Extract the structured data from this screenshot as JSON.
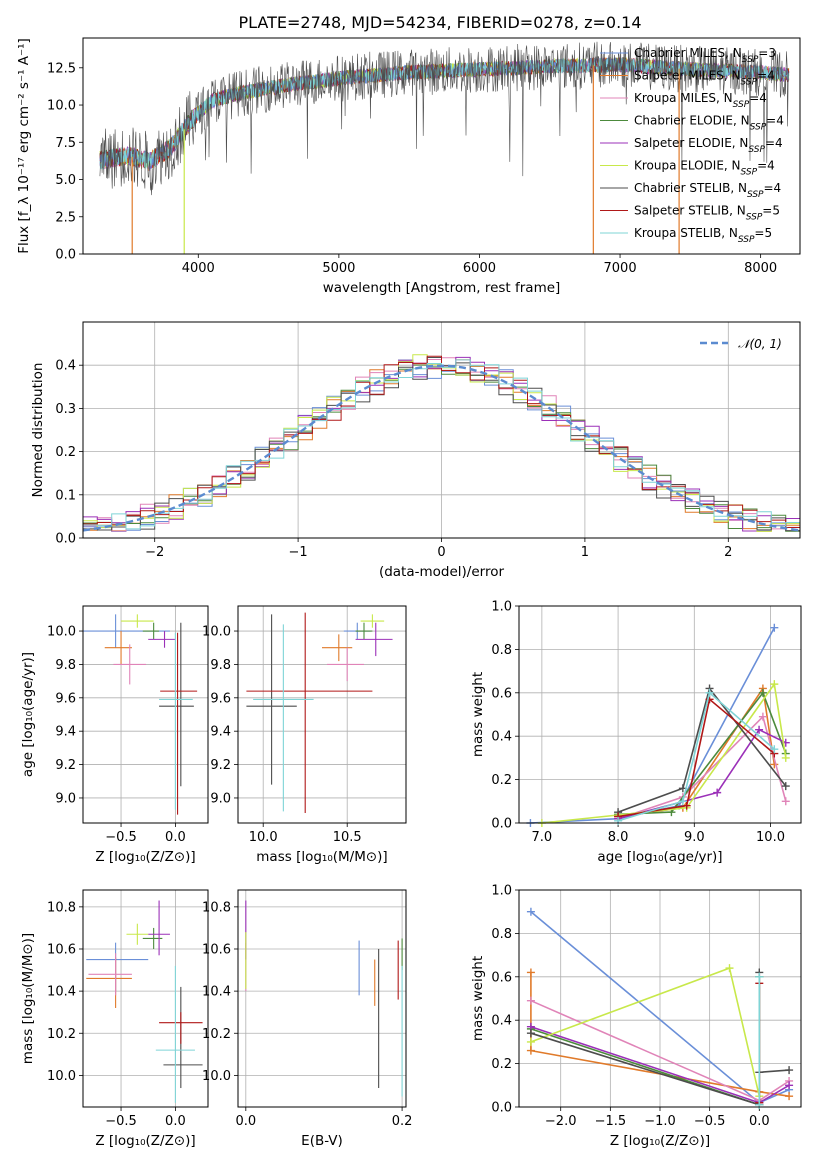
{
  "colors": [
    "#6a8fd8",
    "#e07a2a",
    "#e084b8",
    "#4c8a3c",
    "#9b30b8",
    "#c8e84a",
    "#4d4d4d",
    "#b01818",
    "#7fd4d6"
  ],
  "legend_labels": [
    "Chabrier MILES, N$_{SSP}$=3",
    "Salpeter MILES, N$_{SSP}$=4",
    "Kroupa MILES, N$_{SSP}$=4",
    "Chabrier ELODIE, N$_{SSP}$=4",
    "Salpeter ELODIE, N$_{SSP}$=4",
    "Kroupa ELODIE, N$_{SSP}$=4",
    "Chabrier STELIB, N$_{SSP}$=4",
    "Salpeter STELIB, N$_{SSP}$=5",
    "Kroupa STELIB, N$_{SSP}$=5"
  ],
  "gaussian_label": "𝒩(0, 1)",
  "chart_data": [
    {
      "id": "spectrum",
      "type": "line",
      "title": "PLATE=2748, MJD=54234, FIBERID=0278, z=0.14",
      "xlabel": "wavelength [Angstrom, rest frame]",
      "ylabel": "Flux [f_λ 10⁻¹⁷ erg cm⁻² s⁻¹ A⁻¹]",
      "xlim": [
        3180,
        8280
      ],
      "ylim": [
        0,
        14.5
      ],
      "xticks": [
        4000,
        5000,
        6000,
        7000,
        8000
      ],
      "yticks": [
        0.0,
        2.5,
        5.0,
        7.5,
        10.0,
        12.5
      ],
      "continuum": [
        [
          3300,
          6.3
        ],
        [
          3500,
          6.6
        ],
        [
          3650,
          6.2
        ],
        [
          3800,
          7.1
        ],
        [
          3950,
          9.0
        ],
        [
          4100,
          10.3
        ],
        [
          4300,
          10.8
        ],
        [
          4600,
          11.3
        ],
        [
          5000,
          11.8
        ],
        [
          5500,
          12.2
        ],
        [
          6000,
          12.4
        ],
        [
          6500,
          12.6
        ],
        [
          7000,
          12.7
        ],
        [
          7500,
          12.4
        ],
        [
          8000,
          12.2
        ],
        [
          8200,
          12.0
        ]
      ],
      "dropouts": [
        {
          "x": 3530,
          "y": 0
        },
        {
          "x": 3900,
          "y": 0
        },
        {
          "x": 6810,
          "y": 0
        },
        {
          "x": 7420,
          "y": 0
        }
      ],
      "legend": "top-right",
      "grid": false
    },
    {
      "id": "residuals",
      "type": "histogram",
      "xlabel": "(data-model)/error",
      "ylabel": "Normed distribution",
      "xlim": [
        -2.5,
        2.5
      ],
      "ylim": [
        0,
        0.5
      ],
      "xticks": [
        -2,
        -1,
        0,
        1,
        2
      ],
      "yticks": [
        0.0,
        0.1,
        0.2,
        0.3,
        0.4
      ],
      "bin_width": 0.1,
      "gaussian": {
        "mu": 0,
        "sigma": 1
      },
      "legend": "top-right",
      "grid": true
    },
    {
      "id": "age-vs-Z",
      "type": "scatter",
      "xlabel": "Z [log10(Z/Z⊙)]",
      "ylabel": "age  [log10(age/yr)]",
      "xlim": [
        -0.85,
        0.3
      ],
      "ylim": [
        8.85,
        10.15
      ],
      "xticks": [
        -0.5,
        0.0
      ],
      "xticklabels": [
        "−0.5",
        "0.0"
      ],
      "yticks": [
        9.0,
        9.2,
        9.4,
        9.6,
        9.8,
        10.0
      ],
      "points": [
        {
          "x": -0.55,
          "y": 10.0,
          "xerr": [
            0.35,
            0.5
          ],
          "yerr": [
            0.1,
            0.1
          ]
        },
        {
          "x": -0.5,
          "y": 9.9,
          "xerr": [
            0.15,
            0.1
          ],
          "yerr": [
            0.1,
            0.1
          ]
        },
        {
          "x": -0.42,
          "y": 9.8,
          "xerr": [
            0.15,
            0.15
          ],
          "yerr": [
            0.12,
            0.12
          ]
        },
        {
          "x": -0.2,
          "y": 10.0,
          "xerr": [
            0.1,
            0.05
          ],
          "yerr": [
            0.05,
            0.05
          ]
        },
        {
          "x": -0.1,
          "y": 9.95,
          "xerr": [
            0.15,
            0.1
          ],
          "yerr": [
            0.05,
            0.05
          ]
        },
        {
          "x": -0.35,
          "y": 10.06,
          "xerr": [
            0.15,
            0.15
          ],
          "yerr": [
            0.04,
            0.04
          ]
        },
        {
          "x": 0.05,
          "y": 9.55,
          "xerr": [
            0.2,
            0.12
          ],
          "yerr": [
            0.48,
            0.5
          ]
        },
        {
          "x": 0.02,
          "y": 9.64,
          "xerr": [
            0.16,
            0.18
          ],
          "yerr": [
            0.74,
            0.35
          ]
        },
        {
          "x": 0.0,
          "y": 9.59,
          "xerr": [
            0.15,
            0.16
          ],
          "yerr": [
            0.66,
            0.4
          ]
        }
      ]
    },
    {
      "id": "age-vs-mass",
      "type": "scatter",
      "xlabel": "mass [log10(M/M⊙)]",
      "ylabel": "",
      "xlim": [
        9.85,
        10.85
      ],
      "ylim": [
        8.85,
        10.15
      ],
      "xticks": [
        10.0,
        10.5
      ],
      "xticklabels": [
        "10.0",
        "10.5"
      ],
      "yticks": [
        9.0,
        9.2,
        9.4,
        9.6,
        9.8,
        10.0
      ],
      "points": [
        {
          "x": 10.56,
          "y": 10.0,
          "xerr": [
            0.08,
            0.08
          ],
          "yerr": [
            0.05,
            0.05
          ]
        },
        {
          "x": 10.45,
          "y": 9.9,
          "xerr": [
            0.1,
            0.08
          ],
          "yerr": [
            0.08,
            0.08
          ]
        },
        {
          "x": 10.5,
          "y": 9.8,
          "xerr": [
            0.12,
            0.1
          ],
          "yerr": [
            0.1,
            0.1
          ]
        },
        {
          "x": 10.6,
          "y": 10.0,
          "xerr": [
            0.05,
            0.05
          ],
          "yerr": [
            0.05,
            0.05
          ]
        },
        {
          "x": 10.67,
          "y": 9.95,
          "xerr": [
            0.12,
            0.1
          ],
          "yerr": [
            0.1,
            0.1
          ]
        },
        {
          "x": 10.65,
          "y": 10.06,
          "xerr": [
            0.07,
            0.07
          ],
          "yerr": [
            0.04,
            0.04
          ]
        },
        {
          "x": 10.05,
          "y": 9.55,
          "xerr": [
            0.15,
            0.15
          ],
          "yerr": [
            0.47,
            0.55
          ]
        },
        {
          "x": 10.25,
          "y": 9.64,
          "xerr": [
            0.35,
            0.4
          ],
          "yerr": [
            0.73,
            0.47
          ]
        },
        {
          "x": 10.12,
          "y": 9.59,
          "xerr": [
            0.18,
            0.18
          ],
          "yerr": [
            0.67,
            0.45
          ]
        }
      ]
    },
    {
      "id": "weight-vs-age",
      "type": "line",
      "xlabel": "age  [log10(age/yr)]",
      "ylabel": "mass weight",
      "xlim": [
        6.7,
        10.4
      ],
      "ylim": [
        0,
        1.0
      ],
      "xticks": [
        7,
        8,
        9,
        10
      ],
      "yticks": [
        0.0,
        0.2,
        0.4,
        0.6,
        0.8,
        1.0
      ],
      "series": [
        {
          "points": [
            [
              6.85,
              0.0
            ],
            [
              8.0,
              0.02
            ],
            [
              8.8,
              0.08
            ],
            [
              10.05,
              0.9
            ]
          ]
        },
        {
          "points": [
            [
              8.0,
              0.03
            ],
            [
              8.85,
              0.07
            ],
            [
              9.9,
              0.62
            ],
            [
              10.05,
              0.27
            ]
          ]
        },
        {
          "points": [
            [
              8.0,
              0.02
            ],
            [
              8.85,
              0.12
            ],
            [
              9.9,
              0.49
            ],
            [
              10.2,
              0.1
            ]
          ]
        },
        {
          "points": [
            [
              8.0,
              0.04
            ],
            [
              8.7,
              0.05
            ],
            [
              9.9,
              0.6
            ],
            [
              10.2,
              0.32
            ]
          ]
        },
        {
          "points": [
            [
              8.0,
              0.02
            ],
            [
              9.3,
              0.14
            ],
            [
              9.85,
              0.43
            ],
            [
              10.2,
              0.37
            ]
          ]
        },
        {
          "points": [
            [
              7.0,
              0.0
            ],
            [
              8.9,
              0.07
            ],
            [
              10.05,
              0.64
            ],
            [
              10.2,
              0.3
            ]
          ]
        },
        {
          "points": [
            [
              8.0,
              0.05
            ],
            [
              8.85,
              0.16
            ],
            [
              9.2,
              0.62
            ],
            [
              10.2,
              0.17
            ]
          ]
        },
        {
          "points": [
            [
              8.0,
              0.03
            ],
            [
              8.9,
              0.08
            ],
            [
              9.2,
              0.57
            ],
            [
              10.05,
              0.32
            ]
          ]
        },
        {
          "points": [
            [
              8.0,
              0.01
            ],
            [
              8.85,
              0.1
            ],
            [
              9.2,
              0.6
            ],
            [
              10.05,
              0.34
            ]
          ]
        }
      ]
    },
    {
      "id": "mass-vs-Z",
      "type": "scatter",
      "xlabel": "Z [log10(Z/Z⊙)]",
      "ylabel": "mass [log10(M/M⊙)]",
      "xlim": [
        -0.85,
        0.3
      ],
      "ylim": [
        9.85,
        10.88
      ],
      "xticks": [
        -0.5,
        0.0
      ],
      "xticklabels": [
        "−0.5",
        "0.0"
      ],
      "yticks": [
        10.0,
        10.2,
        10.4,
        10.6,
        10.8
      ],
      "points": [
        {
          "x": -0.55,
          "y": 10.55,
          "xerr": [
            0.27,
            0.3
          ],
          "yerr": [
            0.15,
            0.08
          ]
        },
        {
          "x": -0.55,
          "y": 10.46,
          "xerr": [
            0.27,
            0.15
          ],
          "yerr": [
            0.14,
            0.1
          ]
        },
        {
          "x": -0.55,
          "y": 10.48,
          "xerr": [
            0.25,
            0.15
          ],
          "yerr": [
            0.1,
            0.1
          ]
        },
        {
          "x": -0.2,
          "y": 10.65,
          "xerr": [
            0.1,
            0.08
          ],
          "yerr": [
            0.05,
            0.05
          ]
        },
        {
          "x": -0.15,
          "y": 10.67,
          "xerr": [
            0.1,
            0.1
          ],
          "yerr": [
            0.1,
            0.16
          ]
        },
        {
          "x": -0.35,
          "y": 10.67,
          "xerr": [
            0.1,
            0.1
          ],
          "yerr": [
            0.05,
            0.05
          ]
        },
        {
          "x": 0.05,
          "y": 10.05,
          "xerr": [
            0.16,
            0.2
          ],
          "yerr": [
            0.11,
            0.37
          ]
        },
        {
          "x": 0.05,
          "y": 10.25,
          "xerr": [
            0.2,
            0.2
          ],
          "yerr": [
            0.1,
            0.05
          ]
        },
        {
          "x": 0.0,
          "y": 10.12,
          "xerr": [
            0.18,
            0.18
          ],
          "yerr": [
            0.25,
            0.4
          ]
        }
      ]
    },
    {
      "id": "mass-vs-ebv",
      "type": "scatter",
      "xlabel": "E(B-V)",
      "ylabel": "",
      "xlim": [
        -0.01,
        0.205
      ],
      "ylim": [
        9.85,
        10.88
      ],
      "xticks": [
        0.0,
        0.2
      ],
      "xticklabels": [
        "0.0",
        "0.2"
      ],
      "yticks": [
        10.0,
        10.2,
        10.4,
        10.6,
        10.8
      ],
      "points": [
        {
          "x": 0.145,
          "y": 10.5,
          "yerr": [
            0.12,
            0.14
          ]
        },
        {
          "x": 0.165,
          "y": 10.45,
          "yerr": [
            0.12,
            0.1
          ]
        },
        {
          "x": 0.0,
          "y": 10.55,
          "yerr": [
            0.15,
            0.08
          ]
        },
        {
          "x": 0.2,
          "y": 10.6,
          "yerr": [
            0.1,
            0.05
          ]
        },
        {
          "x": 0.0,
          "y": 10.7,
          "yerr": [
            0.15,
            0.13
          ]
        },
        {
          "x": 0.0,
          "y": 10.55,
          "yerr": [
            0.14,
            0.13
          ]
        },
        {
          "x": 0.17,
          "y": 10.28,
          "yerr": [
            0.34,
            0.32
          ]
        },
        {
          "x": 0.195,
          "y": 10.5,
          "yerr": [
            0.14,
            0.14
          ]
        },
        {
          "x": 0.2,
          "y": 10.2,
          "yerr": [
            0.3,
            0.32
          ]
        }
      ]
    },
    {
      "id": "weight-vs-Z",
      "type": "line",
      "xlabel": "Z [log10(Z/Z⊙)]",
      "ylabel": "mass weight",
      "xlim": [
        -2.42,
        0.42
      ],
      "ylim": [
        0,
        1.0
      ],
      "xticks": [
        -2.0,
        -1.5,
        -1.0,
        -0.5,
        0.0
      ],
      "xticklabels": [
        "−2.0",
        "−1.5",
        "−1.0",
        "−0.5",
        "0.0"
      ],
      "yticks": [
        0.0,
        0.2,
        0.4,
        0.6,
        0.8,
        1.0
      ],
      "series": [
        {
          "points": [
            [
              -2.3,
              0.9
            ],
            [
              0.0,
              0.02
            ],
            [
              0.3,
              0.08
            ]
          ]
        },
        {
          "points": [
            [
              -2.3,
              0.62
            ],
            [
              -2.3,
              0.26
            ],
            [
              0.0,
              0.07
            ],
            [
              0.3,
              0.05
            ]
          ]
        },
        {
          "points": [
            [
              -2.3,
              0.49
            ],
            [
              0.0,
              0.03
            ],
            [
              0.3,
              0.12
            ]
          ]
        },
        {
          "points": [
            [
              -2.3,
              0.36
            ],
            [
              0.0,
              0.01
            ],
            [
              0.0,
              0.6
            ]
          ]
        },
        {
          "points": [
            [
              -2.3,
              0.37
            ],
            [
              0.0,
              0.02
            ],
            [
              0.3,
              0.1
            ]
          ]
        },
        {
          "points": [
            [
              -2.3,
              0.3
            ],
            [
              -0.3,
              0.64
            ],
            [
              0.0,
              0.05
            ]
          ]
        },
        {
          "points": [
            [
              -2.3,
              0.34
            ],
            [
              0.0,
              0.01
            ],
            [
              0.0,
              0.62
            ],
            [
              0.0,
              0.16
            ],
            [
              0.3,
              0.17
            ]
          ]
        },
        {
          "points": [
            [
              0.0,
              0.57
            ],
            [
              0.0,
              0.02
            ]
          ]
        },
        {
          "points": [
            [
              0.0,
              0.6
            ],
            [
              0.0,
              0.01
            ]
          ]
        }
      ]
    }
  ]
}
